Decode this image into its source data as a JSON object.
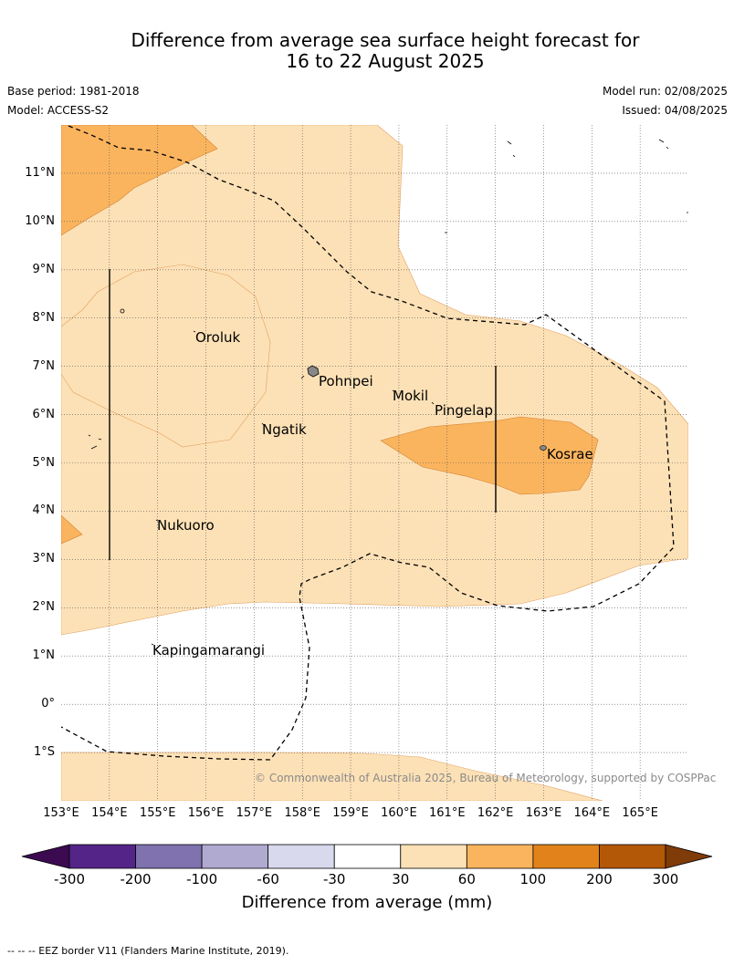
{
  "title": {
    "line1": "Difference from average sea surface height forecast for",
    "line2": "16 to 22 August 2025"
  },
  "meta": {
    "base_period": "Base period: 1981-2018",
    "model": "Model: ACCESS-S2",
    "model_run": "Model run: 02/08/2025",
    "issued": "Issued: 04/08/2025"
  },
  "map": {
    "extent": {
      "lon_min": 153,
      "lon_max": 166,
      "lat_min": -2,
      "lat_max": 12
    },
    "lat_ticks": [
      "11°N",
      "10°N",
      "9°N",
      "8°N",
      "7°N",
      "6°N",
      "5°N",
      "4°N",
      "3°N",
      "2°N",
      "1°N",
      "0°",
      "1°S"
    ],
    "lon_ticks": [
      "153°E",
      "154°E",
      "155°E",
      "156°E",
      "157°E",
      "158°E",
      "159°E",
      "160°E",
      "161°E",
      "162°E",
      "163°E",
      "164°E",
      "165°E"
    ],
    "places": [
      {
        "name": "Oroluk"
      },
      {
        "name": "Pohnpei"
      },
      {
        "name": "Mokil"
      },
      {
        "name": "Pingelap"
      },
      {
        "name": "Ngatik"
      },
      {
        "name": "Kosrae"
      },
      {
        "name": "Nukuoro"
      },
      {
        "name": "Kapingamarangi"
      }
    ],
    "copyright": "© Commonwealth of Australia 2025, Bureau of Meteorology, supported by COSPPac"
  },
  "legend": {
    "title": "Difference from average (mm)",
    "labels": [
      "-300",
      "-200",
      "-100",
      "-60",
      "-30",
      "30",
      "60",
      "100",
      "200",
      "300"
    ],
    "colors": {
      "below_min": "#3b0a51",
      "bins": [
        "#542488",
        "#7f72ae",
        "#b0a9d0",
        "#d8d9ed",
        "#ffffff",
        "#fde1b6",
        "#fbb45e",
        "#e1831a",
        "#b35806"
      ],
      "above_max": "#7f3b08"
    }
  },
  "footer": "--  --  -- EEZ border V11 (Flanders Marine Institute, 2019)."
}
